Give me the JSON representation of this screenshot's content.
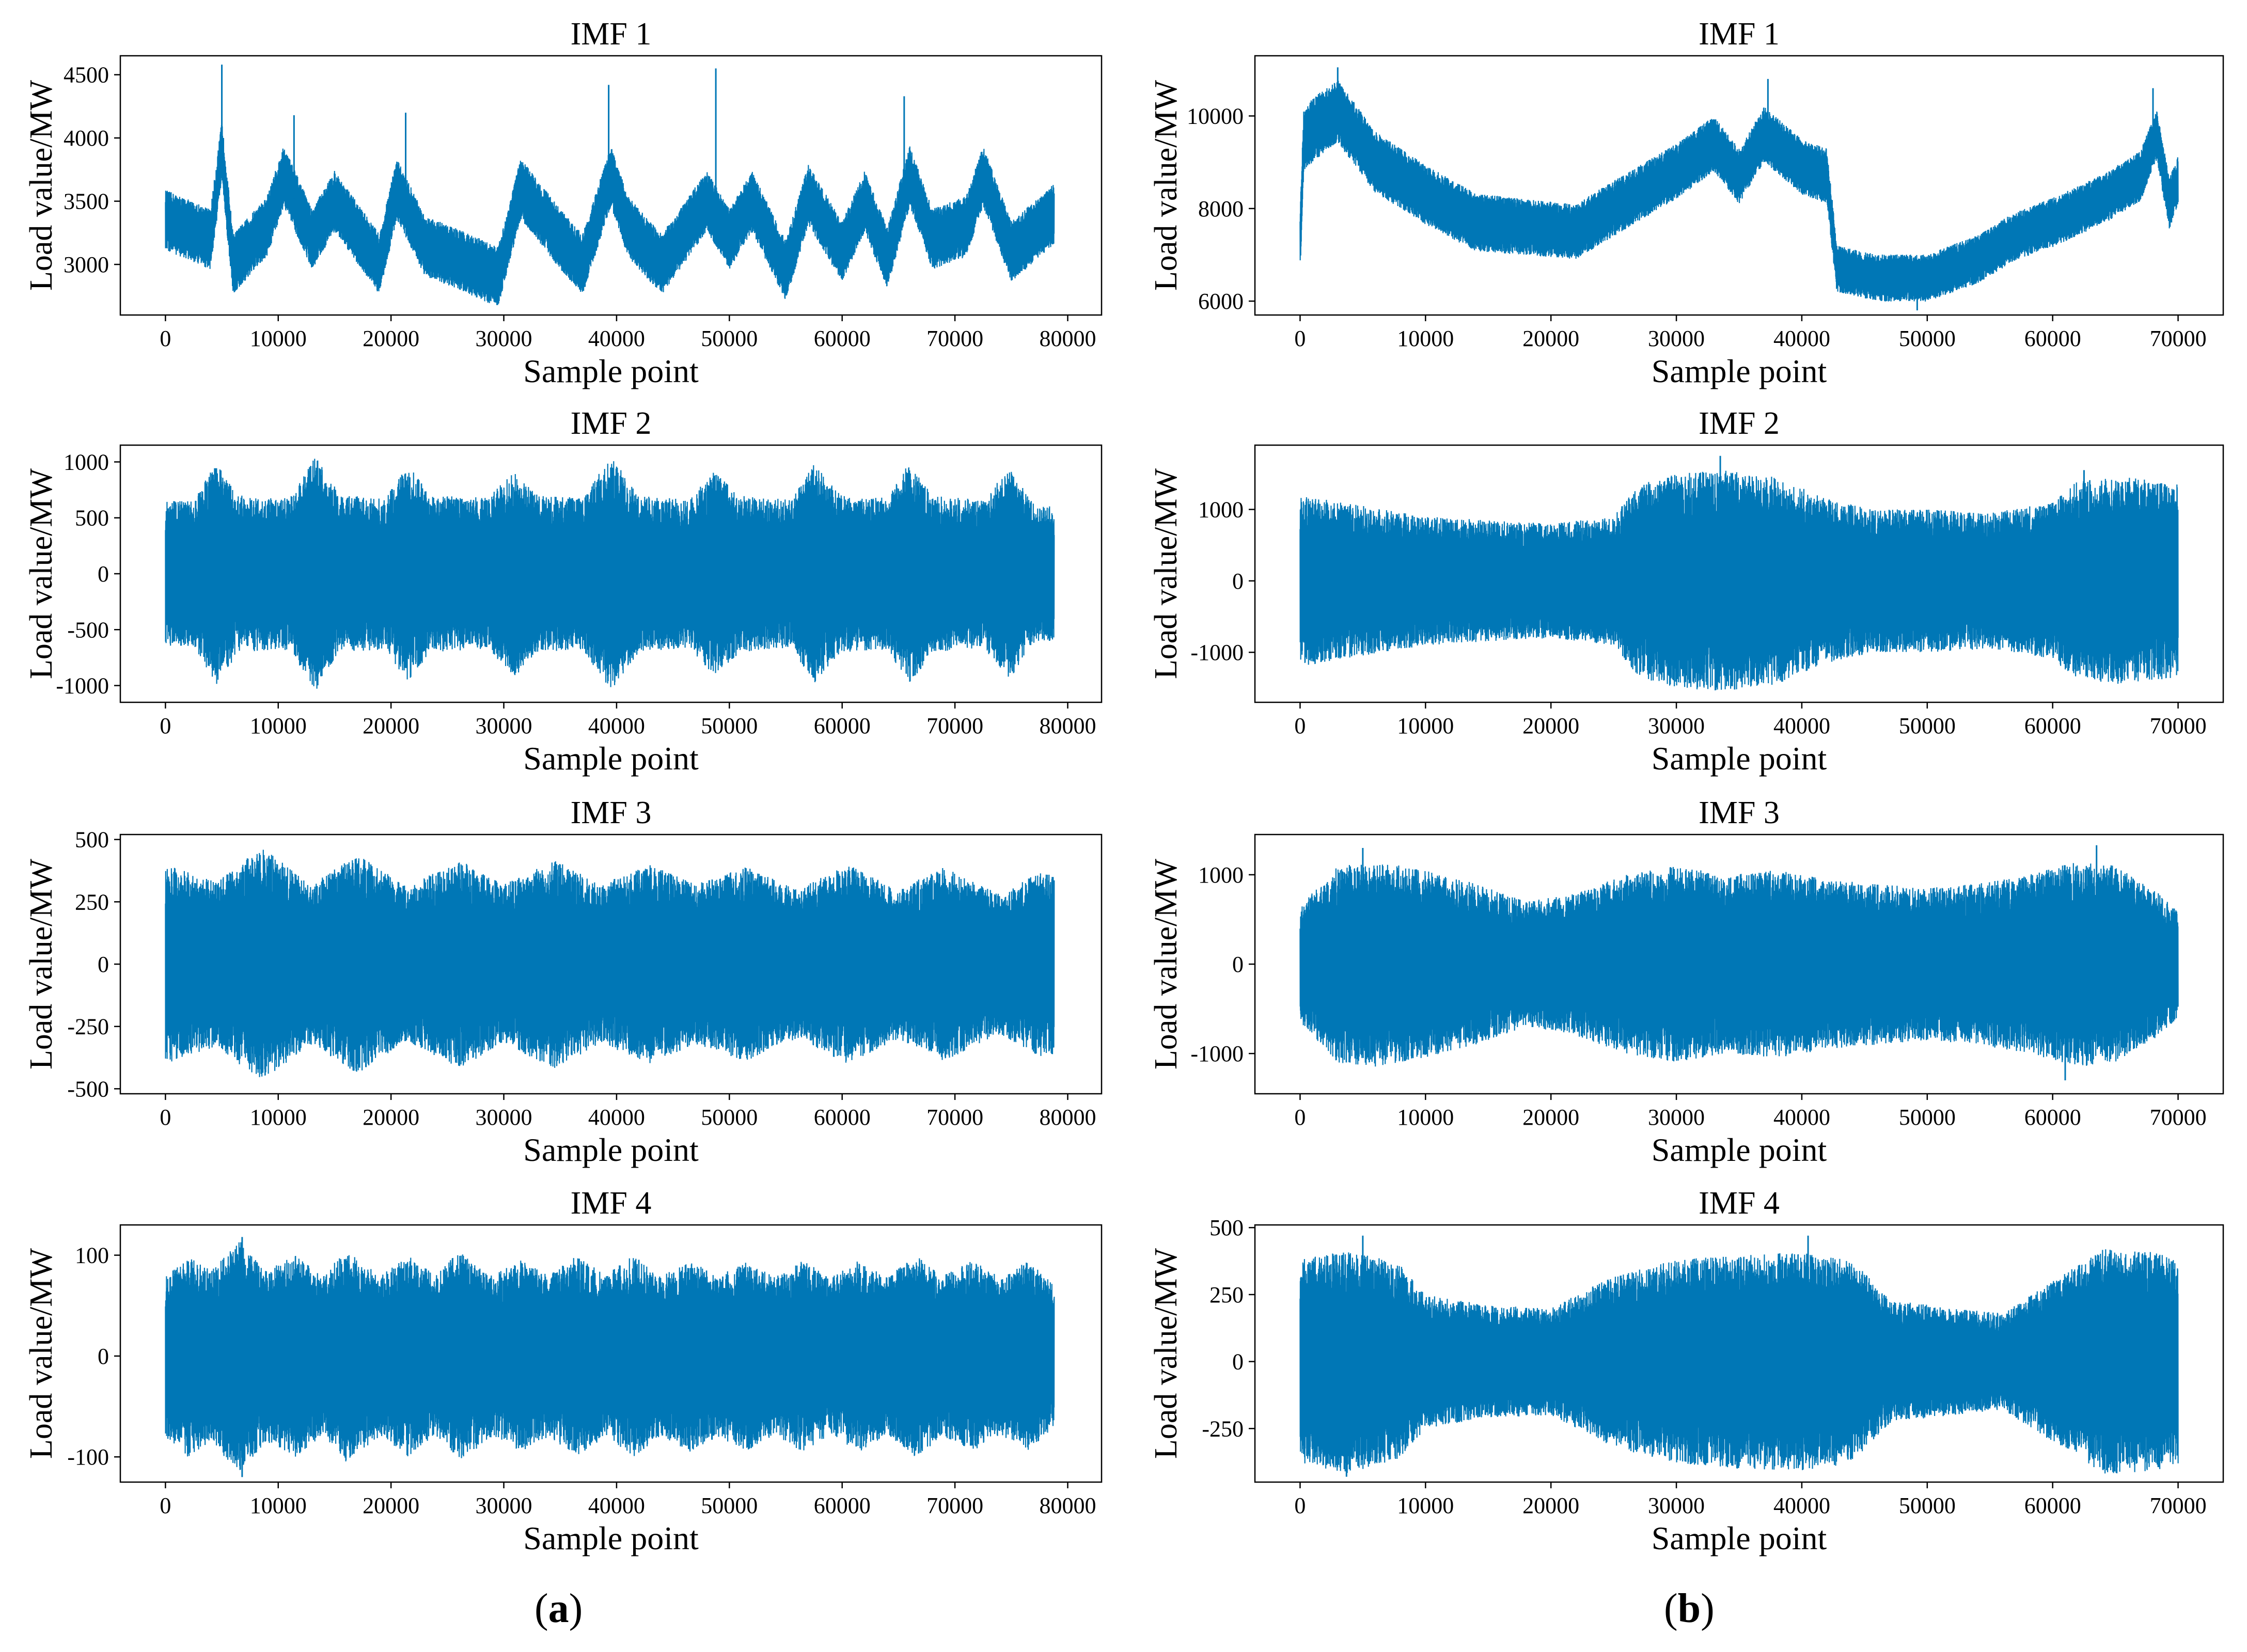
{
  "colors": {
    "line": "#0077b6",
    "axis": "#000000",
    "background": "#ffffff"
  },
  "panel_labels": {
    "a": {
      "open": "(",
      "letter": "a",
      "close": ")"
    },
    "b": {
      "open": "(",
      "letter": "b",
      "close": ")"
    }
  },
  "chart_data": [
    {
      "id": "a1",
      "column": "a",
      "row": 1,
      "type": "line",
      "title": "IMF 1",
      "xlabel": "Sample point",
      "ylabel": "Load value/MW",
      "xlim": [
        -4000,
        83000
      ],
      "ylim": [
        2600,
        4650
      ],
      "xticks": [
        0,
        10000,
        20000,
        30000,
        40000,
        50000,
        60000,
        70000,
        80000
      ],
      "yticks": [
        3000,
        3500,
        4000,
        4500
      ],
      "signal": {
        "n_points": 78800,
        "trend": [
          [
            0,
            3350
          ],
          [
            4000,
            3200
          ],
          [
            5000,
            3900
          ],
          [
            6000,
            3000
          ],
          [
            9000,
            3300
          ],
          [
            10500,
            3700
          ],
          [
            13000,
            3200
          ],
          [
            15000,
            3500
          ],
          [
            19000,
            3000
          ],
          [
            20500,
            3600
          ],
          [
            23000,
            3150
          ],
          [
            27000,
            3000
          ],
          [
            29500,
            2900
          ],
          [
            31500,
            3600
          ],
          [
            35000,
            3200
          ],
          [
            37000,
            3000
          ],
          [
            39500,
            3700
          ],
          [
            41000,
            3300
          ],
          [
            44000,
            3000
          ],
          [
            48000,
            3500
          ],
          [
            50000,
            3200
          ],
          [
            52000,
            3500
          ],
          [
            55000,
            2950
          ],
          [
            57000,
            3550
          ],
          [
            60000,
            3100
          ],
          [
            62000,
            3500
          ],
          [
            64000,
            3050
          ],
          [
            66000,
            3700
          ],
          [
            68000,
            3200
          ],
          [
            71000,
            3300
          ],
          [
            72500,
            3700
          ],
          [
            75000,
            3100
          ],
          [
            78800,
            3400
          ]
        ],
        "envelope": [
          [
            0,
            240
          ],
          [
            78800,
            240
          ]
        ],
        "peaks": [
          [
            5000,
            4580
          ],
          [
            48800,
            4550
          ],
          [
            39300,
            4420
          ],
          [
            65500,
            4330
          ],
          [
            11400,
            4180
          ],
          [
            21300,
            4200
          ]
        ]
      }
    },
    {
      "id": "b1",
      "column": "b",
      "row": 1,
      "type": "line",
      "title": "IMF 1",
      "xlabel": "Sample point",
      "ylabel": "Load value/MW",
      "xlim": [
        -3600,
        73600
      ],
      "ylim": [
        5700,
        11300
      ],
      "xticks": [
        0,
        10000,
        20000,
        30000,
        40000,
        50000,
        60000,
        70000
      ],
      "yticks": [
        6000,
        8000,
        10000
      ],
      "signal": {
        "n_points": 70000,
        "trend": [
          [
            0,
            7300
          ],
          [
            300,
            9500
          ],
          [
            1500,
            9800
          ],
          [
            3000,
            10100
          ],
          [
            6000,
            9000
          ],
          [
            10000,
            8300
          ],
          [
            14000,
            7700
          ],
          [
            18000,
            7600
          ],
          [
            22000,
            7500
          ],
          [
            25000,
            8000
          ],
          [
            30000,
            8800
          ],
          [
            33000,
            9400
          ],
          [
            35000,
            8700
          ],
          [
            37000,
            9600
          ],
          [
            40000,
            8900
          ],
          [
            42000,
            8700
          ],
          [
            42800,
            6700
          ],
          [
            46000,
            6500
          ],
          [
            50000,
            6500
          ],
          [
            54000,
            6900
          ],
          [
            57000,
            7400
          ],
          [
            60000,
            7700
          ],
          [
            64000,
            8200
          ],
          [
            67000,
            8700
          ],
          [
            68300,
            9600
          ],
          [
            69300,
            8100
          ],
          [
            70000,
            8600
          ]
        ],
        "envelope": [
          [
            0,
            700
          ],
          [
            8000,
            650
          ],
          [
            20000,
            600
          ],
          [
            42000,
            600
          ],
          [
            43000,
            500
          ],
          [
            70000,
            550
          ]
        ],
        "peaks": [
          [
            3000,
            11050
          ],
          [
            37300,
            10800
          ],
          [
            68000,
            10600
          ],
          [
            49200,
            5800
          ]
        ]
      }
    },
    {
      "id": "a2",
      "column": "a",
      "row": 2,
      "type": "line",
      "title": "IMF 2",
      "xlabel": "Sample point",
      "ylabel": "Load value/MW",
      "xlim": [
        -4000,
        83000
      ],
      "ylim": [
        -1150,
        1150
      ],
      "xticks": [
        0,
        10000,
        20000,
        30000,
        40000,
        50000,
        60000,
        70000,
        80000
      ],
      "yticks": [
        -1000,
        -500,
        0,
        500,
        1000
      ],
      "signal": {
        "n_points": 78800,
        "trend": [
          [
            0,
            0
          ],
          [
            78800,
            0
          ]
        ],
        "envelope": [
          [
            0,
            650
          ],
          [
            2500,
            650
          ],
          [
            4500,
            1000
          ],
          [
            6500,
            700
          ],
          [
            11000,
            680
          ],
          [
            13300,
            1050
          ],
          [
            15500,
            700
          ],
          [
            19500,
            680
          ],
          [
            21500,
            980
          ],
          [
            23500,
            700
          ],
          [
            28500,
            680
          ],
          [
            31000,
            920
          ],
          [
            33000,
            700
          ],
          [
            37000,
            680
          ],
          [
            39500,
            1050
          ],
          [
            42000,
            700
          ],
          [
            46500,
            660
          ],
          [
            48500,
            920
          ],
          [
            51000,
            700
          ],
          [
            55500,
            660
          ],
          [
            57500,
            980
          ],
          [
            60000,
            700
          ],
          [
            64000,
            680
          ],
          [
            66000,
            1000
          ],
          [
            68000,
            700
          ],
          [
            72500,
            660
          ],
          [
            74800,
            950
          ],
          [
            77000,
            620
          ],
          [
            78800,
            600
          ]
        ],
        "peaks": []
      }
    },
    {
      "id": "b2",
      "column": "b",
      "row": 2,
      "type": "line",
      "title": "IMF 2",
      "xlabel": "Sample point",
      "ylabel": "Load value/MW",
      "xlim": [
        -3600,
        73600
      ],
      "ylim": [
        -1700,
        1900
      ],
      "xticks": [
        0,
        10000,
        20000,
        30000,
        40000,
        50000,
        60000,
        70000
      ],
      "yticks": [
        -1000,
        0,
        1000
      ],
      "signal": {
        "n_points": 70000,
        "trend": [
          [
            0,
            0
          ],
          [
            70000,
            0
          ]
        ],
        "envelope": [
          [
            0,
            1200
          ],
          [
            5000,
            1050
          ],
          [
            10000,
            900
          ],
          [
            15000,
            850
          ],
          [
            20000,
            800
          ],
          [
            25000,
            900
          ],
          [
            27000,
            1350
          ],
          [
            30000,
            1500
          ],
          [
            34000,
            1550
          ],
          [
            38000,
            1450
          ],
          [
            42000,
            1150
          ],
          [
            46000,
            1000
          ],
          [
            50000,
            1000
          ],
          [
            55000,
            950
          ],
          [
            60000,
            1100
          ],
          [
            62000,
            1400
          ],
          [
            66000,
            1450
          ],
          [
            70000,
            1350
          ]
        ],
        "peaks": [
          [
            33500,
            1750
          ],
          [
            29500,
            -1450
          ],
          [
            62500,
            1550
          ]
        ]
      }
    },
    {
      "id": "a3",
      "column": "a",
      "row": 3,
      "type": "line",
      "title": "IMF 3",
      "xlabel": "Sample point",
      "ylabel": "Load value/MW",
      "xlim": [
        -4000,
        83000
      ],
      "ylim": [
        -520,
        520
      ],
      "xticks": [
        0,
        10000,
        20000,
        30000,
        40000,
        50000,
        60000,
        70000,
        80000
      ],
      "yticks": [
        -500,
        -250,
        0,
        250,
        500
      ],
      "signal": {
        "n_points": 78800,
        "trend": [
          [
            0,
            0
          ],
          [
            78800,
            0
          ]
        ],
        "envelope": [
          [
            0,
            400
          ],
          [
            4500,
            330
          ],
          [
            8500,
            470
          ],
          [
            13000,
            320
          ],
          [
            17000,
            440
          ],
          [
            21500,
            310
          ],
          [
            26000,
            420
          ],
          [
            30000,
            320
          ],
          [
            34500,
            420
          ],
          [
            38500,
            320
          ],
          [
            43000,
            400
          ],
          [
            47000,
            320
          ],
          [
            51500,
            390
          ],
          [
            56000,
            300
          ],
          [
            60500,
            400
          ],
          [
            65000,
            300
          ],
          [
            69000,
            390
          ],
          [
            74000,
            280
          ],
          [
            77500,
            370
          ],
          [
            78800,
            360
          ]
        ],
        "peaks": []
      }
    },
    {
      "id": "b3",
      "column": "b",
      "row": 3,
      "type": "line",
      "title": "IMF 3",
      "xlabel": "Sample point",
      "ylabel": "Load value/MW",
      "xlim": [
        -3600,
        73600
      ],
      "ylim": [
        -1450,
        1450
      ],
      "xticks": [
        0,
        10000,
        20000,
        30000,
        40000,
        50000,
        60000,
        70000
      ],
      "yticks": [
        -1000,
        0,
        1000
      ],
      "signal": {
        "n_points": 70000,
        "trend": [
          [
            0,
            0
          ],
          [
            70000,
            0
          ]
        ],
        "envelope": [
          [
            0,
            650
          ],
          [
            3000,
            1100
          ],
          [
            6000,
            1150
          ],
          [
            10000,
            1050
          ],
          [
            14000,
            900
          ],
          [
            18000,
            700
          ],
          [
            22000,
            800
          ],
          [
            26000,
            1000
          ],
          [
            30000,
            1100
          ],
          [
            34000,
            1000
          ],
          [
            38000,
            1050
          ],
          [
            42000,
            950
          ],
          [
            46000,
            900
          ],
          [
            50000,
            850
          ],
          [
            54000,
            900
          ],
          [
            58000,
            1000
          ],
          [
            62000,
            1150
          ],
          [
            65000,
            1100
          ],
          [
            68000,
            850
          ],
          [
            70000,
            600
          ]
        ],
        "peaks": [
          [
            63500,
            1330
          ],
          [
            5000,
            1300
          ],
          [
            61000,
            -1300
          ]
        ]
      }
    },
    {
      "id": "a4",
      "column": "a",
      "row": 4,
      "type": "line",
      "title": "IMF 4",
      "xlabel": "Sample point",
      "ylabel": "Load value/MW",
      "xlim": [
        -4000,
        83000
      ],
      "ylim": [
        -125,
        130
      ],
      "xticks": [
        0,
        10000,
        20000,
        30000,
        40000,
        50000,
        60000,
        70000,
        80000
      ],
      "yticks": [
        -100,
        0,
        100
      ],
      "signal": {
        "n_points": 78800,
        "trend": [
          [
            0,
            0
          ],
          [
            78800,
            0
          ]
        ],
        "envelope": [
          [
            0,
            80
          ],
          [
            2000,
            100
          ],
          [
            4000,
            85
          ],
          [
            6500,
            115
          ],
          [
            9000,
            85
          ],
          [
            11500,
            100
          ],
          [
            14000,
            80
          ],
          [
            16000,
            105
          ],
          [
            19000,
            80
          ],
          [
            21500,
            100
          ],
          [
            24000,
            80
          ],
          [
            26000,
            105
          ],
          [
            29000,
            80
          ],
          [
            31500,
            95
          ],
          [
            34000,
            80
          ],
          [
            36500,
            100
          ],
          [
            39000,
            80
          ],
          [
            41500,
            100
          ],
          [
            44000,
            80
          ],
          [
            46500,
            95
          ],
          [
            49000,
            80
          ],
          [
            51500,
            95
          ],
          [
            54000,
            78
          ],
          [
            56500,
            95
          ],
          [
            59000,
            78
          ],
          [
            61500,
            95
          ],
          [
            64000,
            78
          ],
          [
            66500,
            100
          ],
          [
            69000,
            80
          ],
          [
            71500,
            95
          ],
          [
            74000,
            78
          ],
          [
            76500,
            95
          ],
          [
            78800,
            70
          ]
        ],
        "peaks": [
          [
            6800,
            118
          ],
          [
            6800,
            -120
          ]
        ]
      }
    },
    {
      "id": "b4",
      "column": "b",
      "row": 4,
      "type": "line",
      "title": "IMF 4",
      "xlabel": "Sample point",
      "ylabel": "Load value/MW",
      "xlim": [
        -3600,
        73600
      ],
      "ylim": [
        -450,
        510
      ],
      "xticks": [
        0,
        10000,
        20000,
        30000,
        40000,
        50000,
        60000,
        70000
      ],
      "yticks": [
        -250,
        0,
        250,
        500
      ],
      "signal": {
        "n_points": 70000,
        "trend": [
          [
            0,
            0
          ],
          [
            70000,
            0
          ]
        ],
        "envelope": [
          [
            0,
            380
          ],
          [
            4000,
            420
          ],
          [
            8000,
            360
          ],
          [
            10000,
            250
          ],
          [
            15000,
            210
          ],
          [
            20000,
            200
          ],
          [
            25000,
            320
          ],
          [
            30000,
            380
          ],
          [
            35000,
            400
          ],
          [
            40000,
            410
          ],
          [
            44000,
            380
          ],
          [
            47000,
            230
          ],
          [
            52000,
            200
          ],
          [
            56000,
            180
          ],
          [
            60000,
            300
          ],
          [
            64000,
            420
          ],
          [
            68000,
            410
          ],
          [
            70000,
            380
          ]
        ],
        "peaks": [
          [
            40500,
            470
          ],
          [
            3700,
            -430
          ],
          [
            5000,
            470
          ]
        ]
      }
    }
  ]
}
